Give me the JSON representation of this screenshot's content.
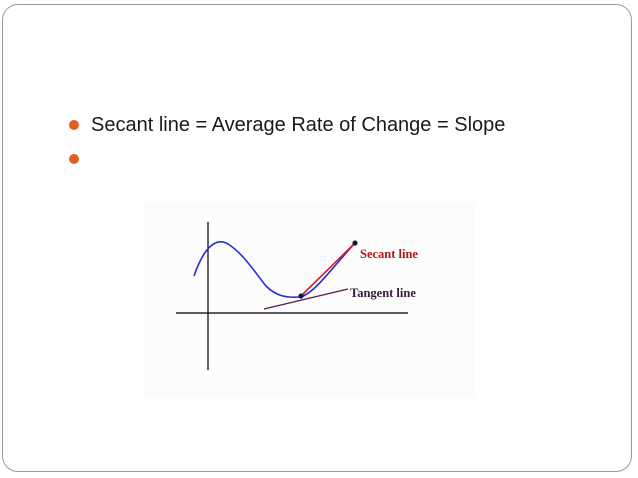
{
  "bullets": [
    {
      "text": "Secant line = Average Rate of Change = Slope"
    },
    {
      "text": ""
    }
  ],
  "figure": {
    "secant_label": "Secant line",
    "tangent_label": "Tangent line",
    "colors": {
      "bullet": "#e0601e",
      "curve": "#2b2bd6",
      "secant": "#e01a1a",
      "secant_label": "#b01818",
      "tangent": "#5a1a4a",
      "tangent_label": "#3a1a40",
      "axes": "#000000"
    }
  }
}
